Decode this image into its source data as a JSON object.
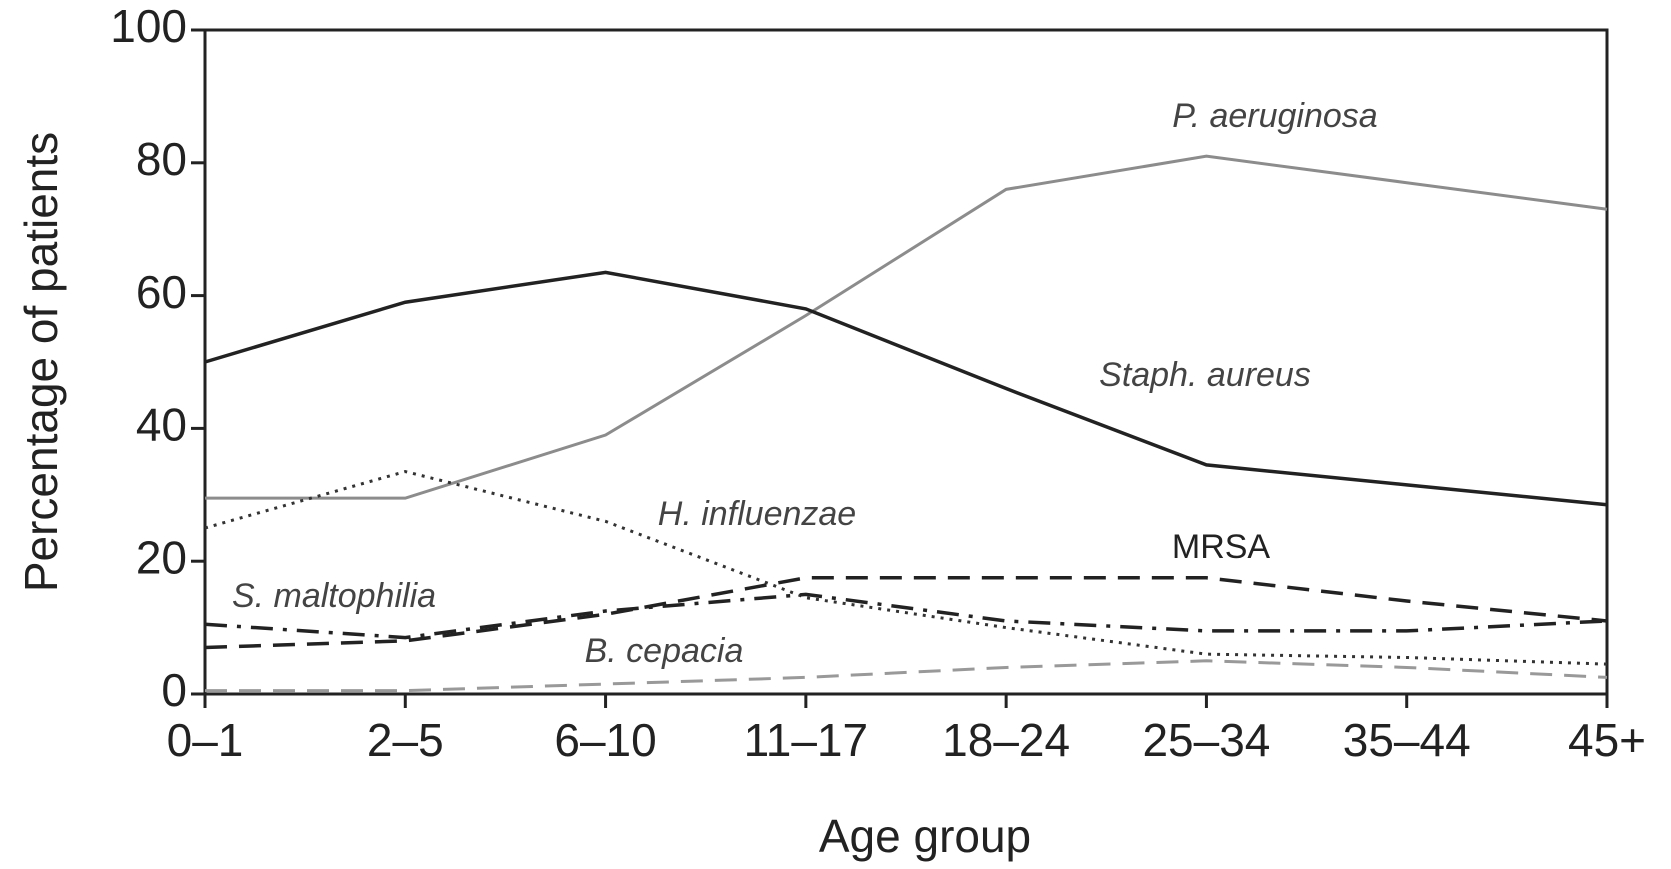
{
  "chart_data": {
    "type": "line",
    "xlabel": "Age group",
    "ylabel": "Percentage of patients",
    "categories": [
      "0–1",
      "2–5",
      "6–10",
      "11–17",
      "18–24",
      "25–34",
      "35–44",
      "45+"
    ],
    "ylim": [
      0,
      100
    ],
    "yticks": [
      0,
      20,
      40,
      60,
      80,
      100
    ],
    "series": [
      {
        "name": "P. aeruginosa",
        "color": "#8c8c8c",
        "dash": "solid",
        "values": [
          29.5,
          29.5,
          39,
          57,
          76,
          81,
          77,
          73
        ]
      },
      {
        "name": "Staph. aureus",
        "color": "#222222",
        "dash": "solid",
        "values": [
          50,
          59,
          63.5,
          58,
          46,
          34.5,
          31.5,
          28.5
        ]
      },
      {
        "name": "H. influenzae",
        "color": "#333333",
        "dash": "dotted",
        "values": [
          25,
          33.5,
          26,
          14.5,
          10,
          6,
          5.5,
          4.5
        ]
      },
      {
        "name": "MRSA",
        "color": "#222222",
        "dash": "dashed",
        "values": [
          7,
          8,
          12,
          17.5,
          17.5,
          17.5,
          14,
          11
        ]
      },
      {
        "name": "S. maltophilia",
        "color": "#222222",
        "dash": "dashdot",
        "values": [
          10.5,
          8.5,
          12.5,
          15,
          11,
          9.5,
          9.5,
          11
        ]
      },
      {
        "name": "B. cepacia",
        "color": "#999999",
        "dash": "dashed",
        "values": [
          0.5,
          0.5,
          1.5,
          2.5,
          4,
          5,
          4,
          2.5
        ]
      }
    ]
  }
}
